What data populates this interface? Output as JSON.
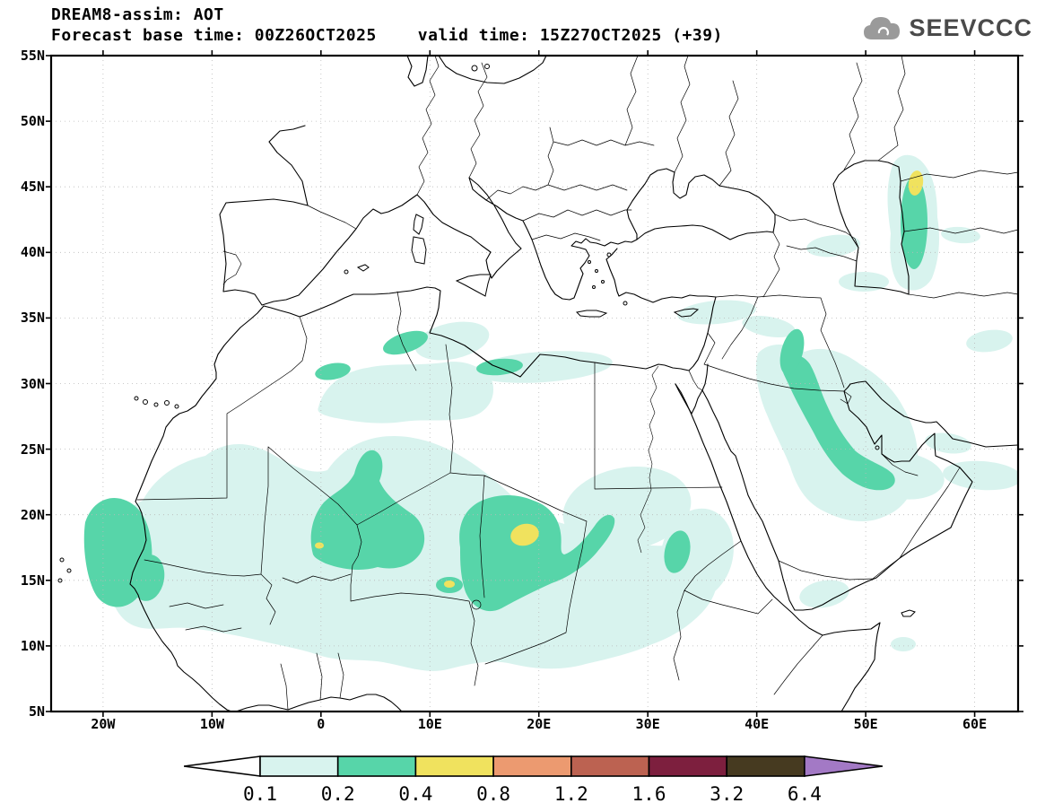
{
  "header": {
    "title": "DREAM8-assim: AOT",
    "forecast_base": "Forecast base time: 00Z26OCT2025",
    "valid_time": "valid time: 15Z27OCT2025 (+39)"
  },
  "logo": {
    "text": "SEEVCCC",
    "icon": "cloud-icon"
  },
  "axes": {
    "lat_labels": [
      "55N",
      "50N",
      "45N",
      "40N",
      "35N",
      "30N",
      "25N",
      "20N",
      "15N",
      "10N",
      "5N"
    ],
    "lon_labels": [
      "20W",
      "10W",
      "0",
      "10E",
      "20E",
      "30E",
      "40E",
      "50E",
      "60E"
    ]
  },
  "colorbar": {
    "tick_labels": [
      "0.1",
      "0.2",
      "0.4",
      "0.8",
      "1.2",
      "1.6",
      "3.2",
      "6.4"
    ],
    "segments": [
      {
        "range": "<0.1",
        "color": "#ffffff"
      },
      {
        "range": "0.1-0.2",
        "color": "#d8f3ee"
      },
      {
        "range": "0.2-0.4",
        "color": "#57d5a9"
      },
      {
        "range": "0.4-0.8",
        "color": "#f0e25e"
      },
      {
        "range": "0.8-1.2",
        "color": "#ec9a70"
      },
      {
        "range": "1.2-1.6",
        "color": "#bc6251"
      },
      {
        "range": "1.6-3.2",
        "color": "#7d1f3e"
      },
      {
        "range": "3.2-6.4",
        "color": "#463a20"
      },
      {
        "range": ">6.4",
        "color": "#a379c5"
      }
    ]
  },
  "chart_data": {
    "type": "heatmap",
    "subtype": "filled-contour-geographic-map",
    "variable": "AOT",
    "model": "DREAM8-assim",
    "forecast_base_time": "00Z26OCT2025",
    "valid_time": "15Z27OCT2025",
    "forecast_hour": "+39",
    "lat_axis": {
      "labels": [
        "55N",
        "50N",
        "45N",
        "40N",
        "35N",
        "30N",
        "25N",
        "20N",
        "15N",
        "10N",
        "5N"
      ],
      "range": [
        "5N",
        "55N"
      ]
    },
    "lon_axis": {
      "labels": [
        "20W",
        "10W",
        "0",
        "10E",
        "20E",
        "30E",
        "40E",
        "50E",
        "60E"
      ],
      "range": [
        "20W",
        "60E"
      ]
    },
    "contour_levels": [
      0.1,
      0.2,
      0.4,
      0.8,
      1.2,
      1.6,
      3.2,
      6.4
    ],
    "legend_position": "bottom"
  }
}
